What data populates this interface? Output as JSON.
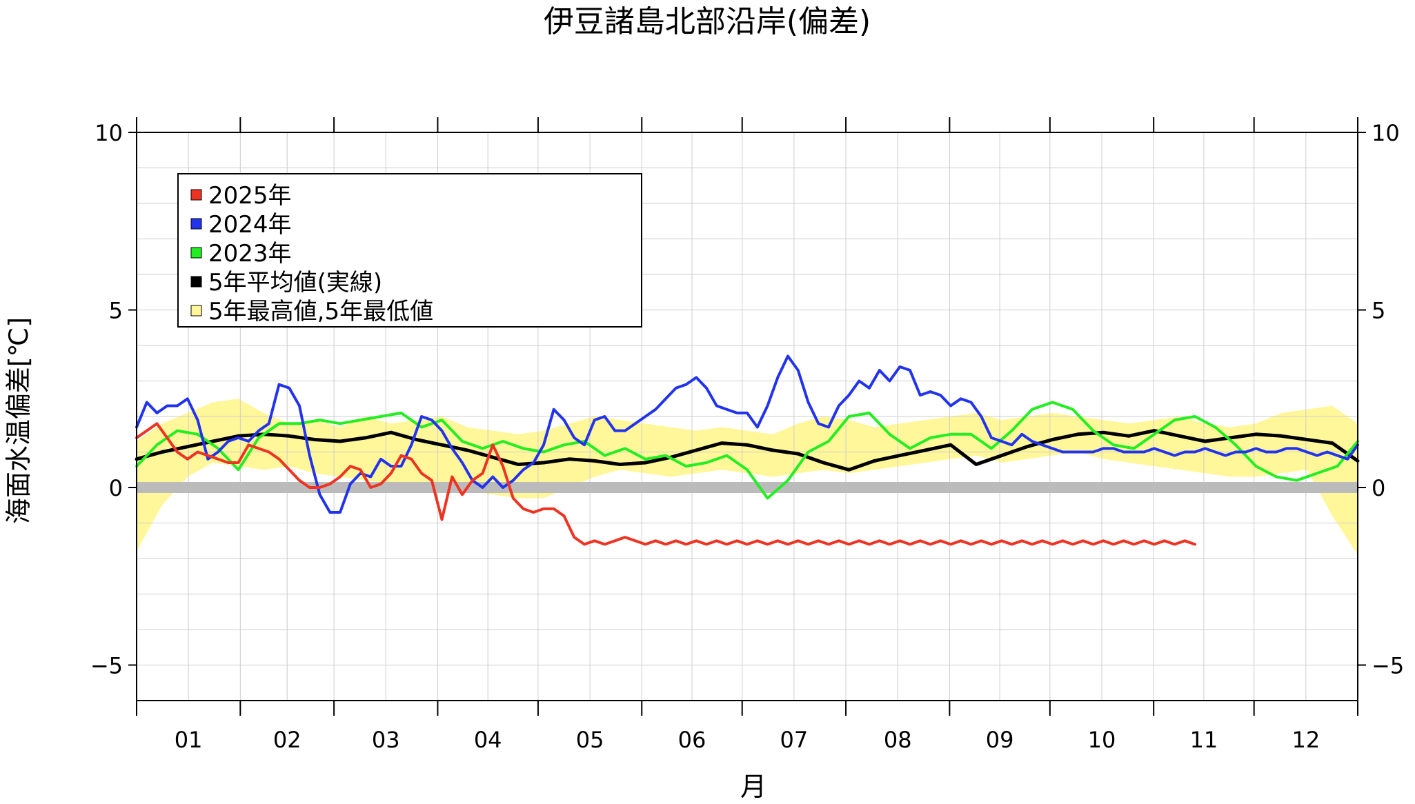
{
  "chart_data": {
    "type": "line",
    "title": "伊豆諸島北部沿岸(偏差)",
    "xlabel": "月",
    "ylabel": "海面水温偏差[℃]",
    "ylim": [
      -6,
      10
    ],
    "xlim": [
      0,
      12
    ],
    "y_ticks": [
      -5,
      0,
      5,
      10
    ],
    "y_tick_labels": [
      "−5",
      "0",
      "5",
      "10"
    ],
    "x_tick_labels": [
      "01",
      "02",
      "03",
      "04",
      "05",
      "06",
      "07",
      "08",
      "09",
      "10",
      "11",
      "12"
    ],
    "grid": true,
    "legend_position": "top-left",
    "legend": [
      {
        "label": "2025年",
        "color": "#ee3322"
      },
      {
        "label": "2024年",
        "color": "#2233ee"
      },
      {
        "label": "2023年",
        "color": "#22ee22"
      },
      {
        "label": "5年平均値(実線)",
        "color": "#000000"
      },
      {
        "label": "5年最高値,5年最低値",
        "color": "#fff79a"
      }
    ],
    "colors": {
      "band": "#fff79a",
      "zero_line": "#bbbbbb",
      "grid": "#cccccc"
    },
    "band": {
      "x": [
        0,
        0.25,
        0.5,
        0.75,
        1,
        1.25,
        1.5,
        1.75,
        2,
        2.25,
        2.5,
        2.75,
        3,
        3.25,
        3.5,
        3.75,
        4,
        4.25,
        4.5,
        4.75,
        5,
        5.25,
        5.5,
        5.75,
        6,
        6.25,
        6.5,
        6.75,
        7,
        7.25,
        7.5,
        7.75,
        8,
        8.25,
        8.5,
        8.75,
        9,
        9.25,
        9.5,
        9.75,
        10,
        10.25,
        10.5,
        10.75,
        11,
        11.25,
        11.5,
        11.75,
        12
      ],
      "high": [
        1.3,
        1.8,
        2.1,
        2.4,
        2.5,
        2.1,
        1.8,
        1.9,
        1.7,
        2.0,
        1.8,
        1.9,
        2.0,
        1.7,
        1.6,
        1.5,
        1.6,
        1.8,
        2.0,
        1.9,
        1.8,
        1.7,
        1.6,
        1.7,
        1.6,
        1.5,
        1.8,
        2.0,
        1.9,
        1.7,
        1.8,
        1.9,
        2.0,
        2.1,
        1.9,
        2.0,
        2.1,
        2.0,
        1.9,
        1.8,
        1.9,
        2.0,
        1.8,
        1.7,
        1.8,
        2.1,
        2.2,
        2.3,
        1.8
      ],
      "low": [
        -1.8,
        -0.5,
        0.3,
        0.7,
        0.6,
        0.5,
        0.6,
        0.4,
        0.3,
        0.2,
        0.1,
        0.0,
        0.0,
        -0.1,
        -0.2,
        -0.3,
        -0.3,
        0.0,
        0.3,
        0.5,
        0.4,
        0.3,
        0.4,
        0.5,
        0.4,
        0.3,
        0.4,
        0.5,
        0.4,
        0.5,
        0.6,
        0.7,
        0.8,
        0.9,
        0.7,
        0.8,
        0.9,
        1.0,
        0.8,
        0.7,
        0.6,
        0.5,
        0.4,
        0.3,
        0.3,
        0.4,
        0.5,
        -0.8,
        -1.9
      ]
    },
    "series": [
      {
        "name": "5年平均値",
        "color": "#000000",
        "x": [
          0,
          0.25,
          0.5,
          0.75,
          1,
          1.25,
          1.5,
          1.75,
          2,
          2.25,
          2.5,
          2.75,
          3,
          3.25,
          3.5,
          3.75,
          4,
          4.25,
          4.5,
          4.75,
          5,
          5.25,
          5.5,
          5.75,
          6,
          6.25,
          6.5,
          6.75,
          7,
          7.25,
          7.5,
          7.75,
          8,
          8.25,
          8.5,
          8.75,
          9,
          9.25,
          9.5,
          9.75,
          10,
          10.25,
          10.5,
          10.75,
          11,
          11.25,
          11.5,
          11.75,
          12
        ],
        "values": [
          0.8,
          1.0,
          1.15,
          1.3,
          1.45,
          1.5,
          1.45,
          1.35,
          1.3,
          1.4,
          1.55,
          1.35,
          1.2,
          1.05,
          0.85,
          0.65,
          0.7,
          0.8,
          0.75,
          0.65,
          0.7,
          0.85,
          1.05,
          1.25,
          1.2,
          1.05,
          0.95,
          0.7,
          0.5,
          0.75,
          0.9,
          1.05,
          1.2,
          0.65,
          0.9,
          1.15,
          1.35,
          1.5,
          1.55,
          1.45,
          1.6,
          1.45,
          1.3,
          1.4,
          1.5,
          1.45,
          1.35,
          1.25,
          0.75
        ]
      },
      {
        "name": "2023年",
        "color": "#22ee22",
        "x": [
          0,
          0.2,
          0.4,
          0.6,
          0.8,
          1,
          1.2,
          1.4,
          1.6,
          1.8,
          2,
          2.2,
          2.4,
          2.6,
          2.8,
          3,
          3.2,
          3.4,
          3.6,
          3.8,
          4,
          4.2,
          4.4,
          4.6,
          4.8,
          5,
          5.2,
          5.4,
          5.6,
          5.8,
          6,
          6.2,
          6.4,
          6.6,
          6.8,
          7,
          7.2,
          7.4,
          7.6,
          7.8,
          8,
          8.2,
          8.4,
          8.6,
          8.8,
          9,
          9.2,
          9.4,
          9.6,
          9.8,
          10,
          10.2,
          10.4,
          10.6,
          10.8,
          11,
          11.2,
          11.4,
          11.6,
          11.8,
          12
        ],
        "values": [
          0.6,
          1.2,
          1.6,
          1.5,
          1.1,
          0.5,
          1.4,
          1.8,
          1.8,
          1.9,
          1.8,
          1.9,
          2.0,
          2.1,
          1.7,
          1.9,
          1.3,
          1.1,
          1.3,
          1.1,
          1.0,
          1.2,
          1.3,
          0.9,
          1.1,
          0.8,
          0.9,
          0.6,
          0.7,
          0.9,
          0.5,
          -0.3,
          0.2,
          1.0,
          1.3,
          2.0,
          2.1,
          1.5,
          1.1,
          1.4,
          1.5,
          1.5,
          1.1,
          1.6,
          2.2,
          2.4,
          2.2,
          1.6,
          1.2,
          1.1,
          1.5,
          1.9,
          2.0,
          1.7,
          1.2,
          0.6,
          0.3,
          0.2,
          0.4,
          0.6,
          1.3
        ]
      },
      {
        "name": "2024年",
        "color": "#2233ee",
        "x": [
          0,
          0.1,
          0.2,
          0.3,
          0.4,
          0.5,
          0.6,
          0.7,
          0.8,
          0.9,
          1,
          1.1,
          1.2,
          1.3,
          1.4,
          1.5,
          1.6,
          1.7,
          1.8,
          1.9,
          2,
          2.1,
          2.2,
          2.3,
          2.4,
          2.5,
          2.6,
          2.7,
          2.8,
          2.9,
          3,
          3.1,
          3.2,
          3.3,
          3.4,
          3.5,
          3.6,
          3.7,
          3.8,
          3.9,
          4,
          4.1,
          4.2,
          4.3,
          4.4,
          4.5,
          4.6,
          4.7,
          4.8,
          4.9,
          5,
          5.1,
          5.2,
          5.3,
          5.4,
          5.5,
          5.6,
          5.7,
          5.8,
          5.9,
          6,
          6.1,
          6.2,
          6.3,
          6.4,
          6.5,
          6.6,
          6.7,
          6.8,
          6.9,
          7,
          7.1,
          7.2,
          7.3,
          7.4,
          7.5,
          7.6,
          7.7,
          7.8,
          7.9,
          8,
          8.1,
          8.2,
          8.3,
          8.4,
          8.5,
          8.6,
          8.7,
          8.8,
          8.9,
          9,
          9.1,
          9.2,
          9.3,
          9.4,
          9.5,
          9.6,
          9.7,
          9.8,
          9.9,
          10,
          10.1,
          10.2,
          10.3,
          10.4,
          10.5,
          10.6,
          10.7,
          10.8,
          10.9,
          11,
          11.1,
          11.2,
          11.3,
          11.4,
          11.5,
          11.6,
          11.7,
          11.8,
          11.9,
          12
        ],
        "values": [
          1.7,
          2.4,
          2.1,
          2.3,
          2.3,
          2.5,
          1.9,
          0.8,
          1.0,
          1.3,
          1.4,
          1.3,
          1.6,
          1.8,
          2.9,
          2.8,
          2.3,
          0.9,
          -0.2,
          -0.7,
          -0.7,
          0.1,
          0.4,
          0.3,
          0.8,
          0.6,
          0.6,
          1.2,
          2.0,
          1.9,
          1.6,
          1.1,
          0.7,
          0.2,
          0.0,
          0.3,
          0.0,
          0.2,
          0.5,
          0.7,
          1.2,
          2.2,
          1.9,
          1.4,
          1.2,
          1.9,
          2.0,
          1.6,
          1.6,
          1.8,
          2.0,
          2.2,
          2.5,
          2.8,
          2.9,
          3.1,
          2.8,
          2.3,
          2.2,
          2.1,
          2.1,
          1.7,
          2.3,
          3.1,
          3.7,
          3.3,
          2.4,
          1.8,
          1.7,
          2.3,
          2.6,
          3.0,
          2.8,
          3.3,
          3.0,
          3.4,
          3.3,
          2.6,
          2.7,
          2.6,
          2.3,
          2.5,
          2.4,
          2.0,
          1.4,
          1.3,
          1.2,
          1.5,
          1.3,
          1.2,
          1.1,
          1.0,
          1.0,
          1.0,
          1.0,
          1.1,
          1.1,
          1.0,
          1.0,
          1.0,
          1.1,
          1.0,
          0.9,
          1.0,
          1.0,
          1.1,
          1.0,
          0.9,
          1.0,
          1.0,
          1.1,
          1.0,
          1.0,
          1.1,
          1.1,
          1.0,
          0.9,
          1.0,
          0.9,
          0.8,
          1.2
        ]
      },
      {
        "name": "2025年",
        "color": "#ee3322",
        "x": [
          0,
          0.1,
          0.2,
          0.3,
          0.4,
          0.5,
          0.6,
          0.7,
          0.8,
          0.9,
          1,
          1.1,
          1.2,
          1.3,
          1.4,
          1.5,
          1.6,
          1.7,
          1.8,
          1.9,
          2,
          2.1,
          2.2,
          2.3,
          2.4,
          2.5,
          2.6,
          2.7,
          2.8,
          2.9,
          3,
          3.1,
          3.2,
          3.3,
          3.4,
          3.5,
          3.6,
          3.7,
          3.8,
          3.9,
          4,
          4.1,
          4.2,
          4.3,
          4.4,
          4.5,
          4.6,
          4.7,
          4.8,
          4.9,
          5,
          5.1,
          5.2,
          5.3,
          5.4,
          5.5,
          5.6,
          5.7,
          5.8,
          5.9,
          6,
          6.1,
          6.2,
          6.3,
          6.4,
          6.5,
          6.6,
          6.7,
          6.8,
          6.9,
          7,
          7.1,
          7.2,
          7.3,
          7.4,
          7.5,
          7.6,
          7.7,
          7.8,
          7.9,
          8,
          8.1,
          8.2,
          8.3,
          8.4,
          8.5,
          8.6,
          8.7,
          8.8,
          8.9,
          9,
          9.1,
          9.2,
          9.3,
          9.4,
          9.5,
          9.6,
          9.7,
          9.8,
          9.9,
          10,
          10.1,
          10.2,
          10.3,
          10.4
        ],
        "values": [
          1.4,
          1.6,
          1.8,
          1.4,
          1.0,
          0.8,
          1.0,
          0.9,
          0.8,
          0.7,
          0.7,
          1.2,
          1.1,
          1.0,
          0.8,
          0.5,
          0.2,
          0.0,
          0.0,
          0.1,
          0.3,
          0.6,
          0.5,
          0.0,
          0.1,
          0.4,
          0.9,
          0.8,
          0.4,
          0.2,
          -0.9,
          0.3,
          -0.2,
          0.2,
          0.4,
          1.2,
          0.6,
          -0.3,
          -0.6,
          -0.7,
          -0.6,
          -0.6,
          -0.8,
          -1.4,
          -1.6,
          -1.5,
          -1.6,
          -1.5,
          -1.4,
          -1.5,
          -1.6,
          -1.5,
          -1.6,
          -1.5,
          -1.6,
          -1.5,
          -1.6,
          -1.5,
          -1.6,
          -1.5,
          -1.6,
          -1.5,
          -1.6,
          -1.5,
          -1.6,
          -1.5,
          -1.6,
          -1.5,
          -1.6,
          -1.5,
          -1.6,
          -1.5,
          -1.6,
          -1.5,
          -1.6,
          -1.5,
          -1.6,
          -1.5,
          -1.6,
          -1.5,
          -1.6,
          -1.5,
          -1.6,
          -1.5,
          -1.6,
          -1.5,
          -1.6,
          -1.5,
          -1.6,
          -1.5,
          -1.6,
          -1.5,
          -1.6,
          -1.5,
          -1.6,
          -1.5,
          -1.6,
          -1.5,
          -1.6,
          -1.5,
          -1.6,
          -1.5,
          -1.6,
          -1.5,
          -1.6
        ]
      }
    ]
  }
}
